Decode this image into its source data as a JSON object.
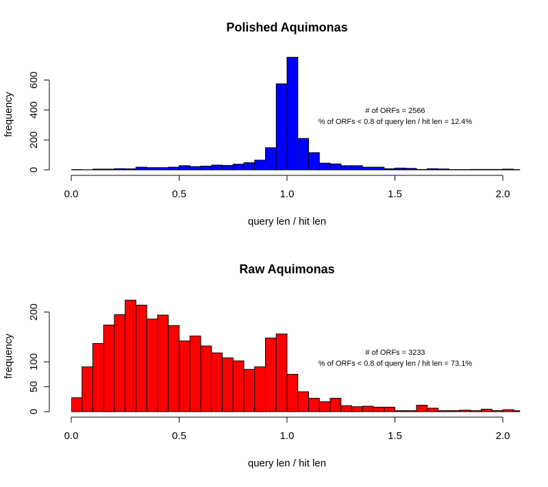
{
  "chart_data": [
    {
      "type": "histogram",
      "title": "Polished Aquimonas",
      "xlabel": "query len / hit len",
      "ylabel": "frequency",
      "annotations": [
        "# of ORFs = 2566",
        "% of ORFs < 0.8 of query len / hit len = 12.4%"
      ],
      "color": "#0000ff",
      "bins": [
        0,
        0.05,
        0.1,
        0.15,
        0.2,
        0.25,
        0.3,
        0.35,
        0.4,
        0.45,
        0.5,
        0.55,
        0.6,
        0.65,
        0.7,
        0.75,
        0.8,
        0.85,
        0.9,
        0.95,
        1.0,
        1.05,
        1.1,
        1.15,
        1.2,
        1.25,
        1.3,
        1.35,
        1.4,
        1.45,
        1.5,
        1.55,
        1.6,
        1.65,
        1.7,
        1.75,
        1.8,
        1.85,
        1.9,
        1.95,
        2.0,
        2.05,
        2.1
      ],
      "values": [
        2,
        1,
        5,
        5,
        8,
        7,
        18,
        15,
        15,
        18,
        28,
        22,
        25,
        32,
        30,
        38,
        48,
        65,
        148,
        575,
        752,
        210,
        115,
        45,
        40,
        28,
        28,
        18,
        18,
        8,
        12,
        10,
        3,
        8,
        6,
        2,
        2,
        3,
        3,
        3,
        5,
        2
      ],
      "xlim": [
        0,
        2.08
      ],
      "xticks": [
        {
          "value": 0,
          "label": "0.0"
        },
        0.5,
        {
          "value": 1,
          "label": "1.0"
        },
        1.5,
        {
          "value": 2,
          "label": "2.0"
        }
      ],
      "ylim": [
        0,
        755
      ],
      "yticks": [
        0,
        200,
        400,
        600
      ]
    },
    {
      "type": "histogram",
      "title": "Raw Aquimonas",
      "xlabel": "query len / hit len",
      "ylabel": "frequency",
      "annotations": [
        "# of ORFs = 3233",
        "% of ORFs < 0.8 of query len / hit len = 73.1%"
      ],
      "color": "#ff0000",
      "bins": [
        0,
        0.05,
        0.1,
        0.15,
        0.2,
        0.25,
        0.3,
        0.35,
        0.4,
        0.45,
        0.5,
        0.55,
        0.6,
        0.65,
        0.7,
        0.75,
        0.8,
        0.85,
        0.9,
        0.95,
        1.0,
        1.05,
        1.1,
        1.15,
        1.2,
        1.25,
        1.3,
        1.35,
        1.4,
        1.45,
        1.5,
        1.55,
        1.6,
        1.65,
        1.7,
        1.75,
        1.8,
        1.85,
        1.9,
        1.95,
        2.0,
        2.05,
        2.1
      ],
      "values": [
        28,
        90,
        137,
        174,
        195,
        224,
        214,
        186,
        194,
        173,
        142,
        152,
        132,
        118,
        108,
        102,
        85,
        90,
        148,
        156,
        75,
        40,
        27,
        20,
        27,
        12,
        10,
        11,
        9,
        9,
        2,
        2,
        13,
        7,
        2,
        2,
        3,
        2,
        5,
        2,
        4,
        2
      ],
      "xlim": [
        0,
        2.08
      ],
      "xticks": [
        {
          "value": 0,
          "label": "0.0"
        },
        0.5,
        {
          "value": 1,
          "label": "1.0"
        },
        1.5,
        {
          "value": 2,
          "label": "2.0"
        }
      ],
      "ylim": [
        0,
        227
      ],
      "yticks": [
        0,
        50,
        100,
        200
      ]
    }
  ]
}
